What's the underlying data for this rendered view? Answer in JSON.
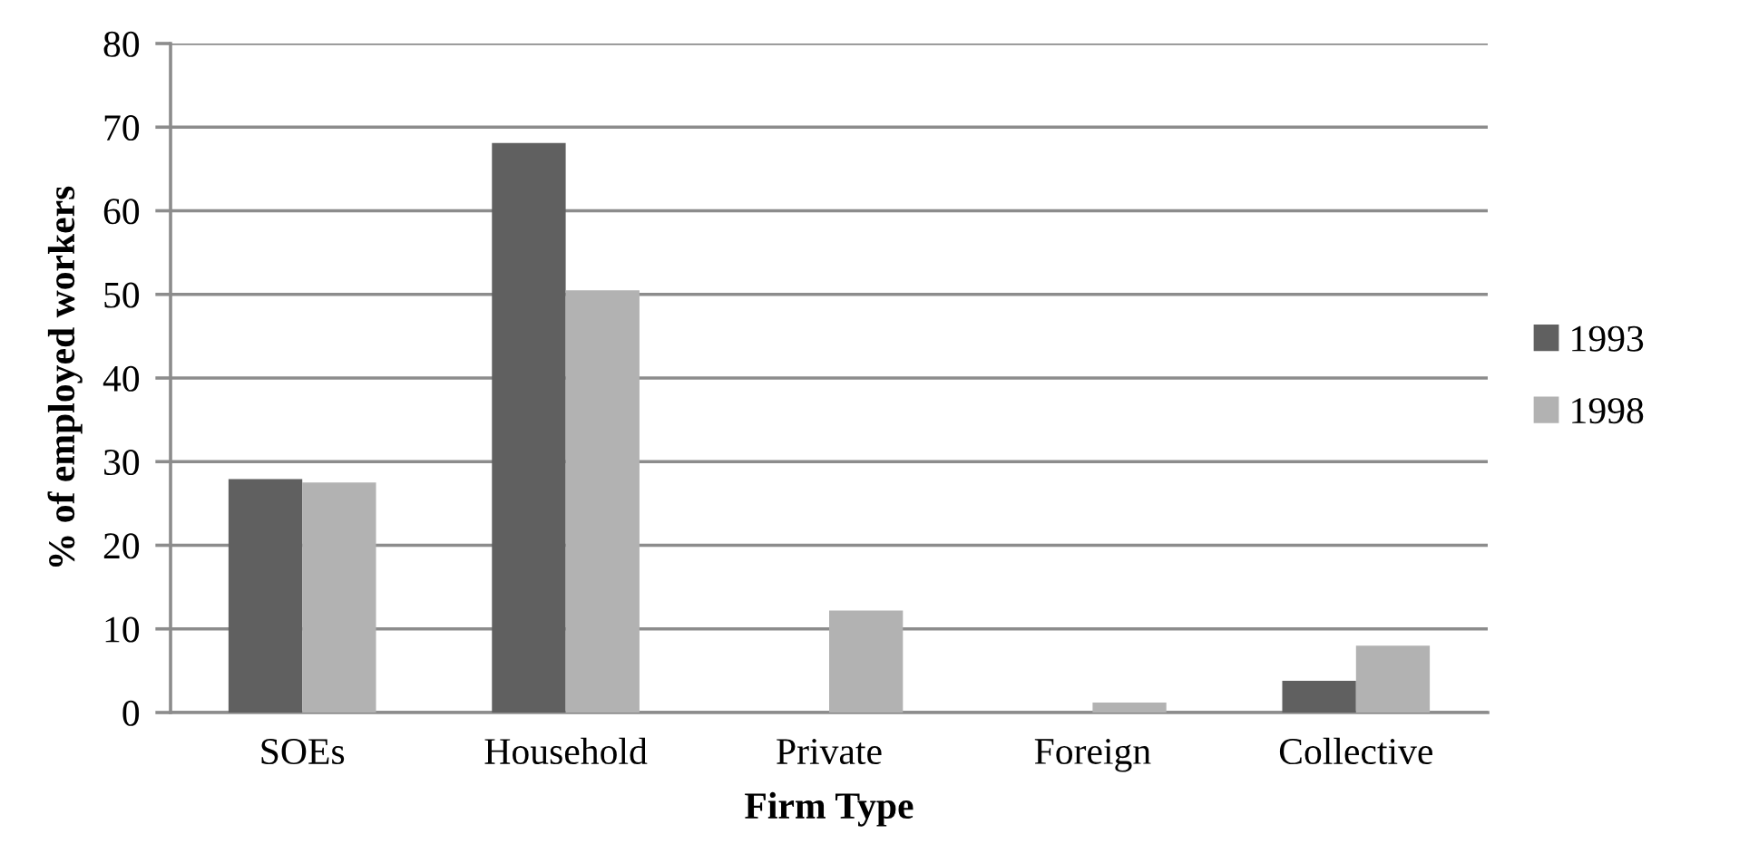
{
  "chart_data": {
    "type": "bar",
    "xlabel": "Firm Type",
    "ylabel": "% of employed workers",
    "categories": [
      "SOEs",
      "Household",
      "Private",
      "Foreign",
      "Collective"
    ],
    "series": [
      {
        "name": "1993",
        "color": "#606060",
        "values": [
          27.9,
          68.1,
          0,
          0,
          3.8
        ]
      },
      {
        "name": "1998",
        "color": "#b2b2b2",
        "values": [
          27.5,
          50.5,
          12.2,
          1.2,
          8.0
        ]
      }
    ],
    "ylim": [
      0,
      80
    ],
    "yticks": [
      0,
      10,
      20,
      30,
      40,
      50,
      60,
      70,
      80
    ],
    "grid": "y",
    "legend": "right"
  }
}
